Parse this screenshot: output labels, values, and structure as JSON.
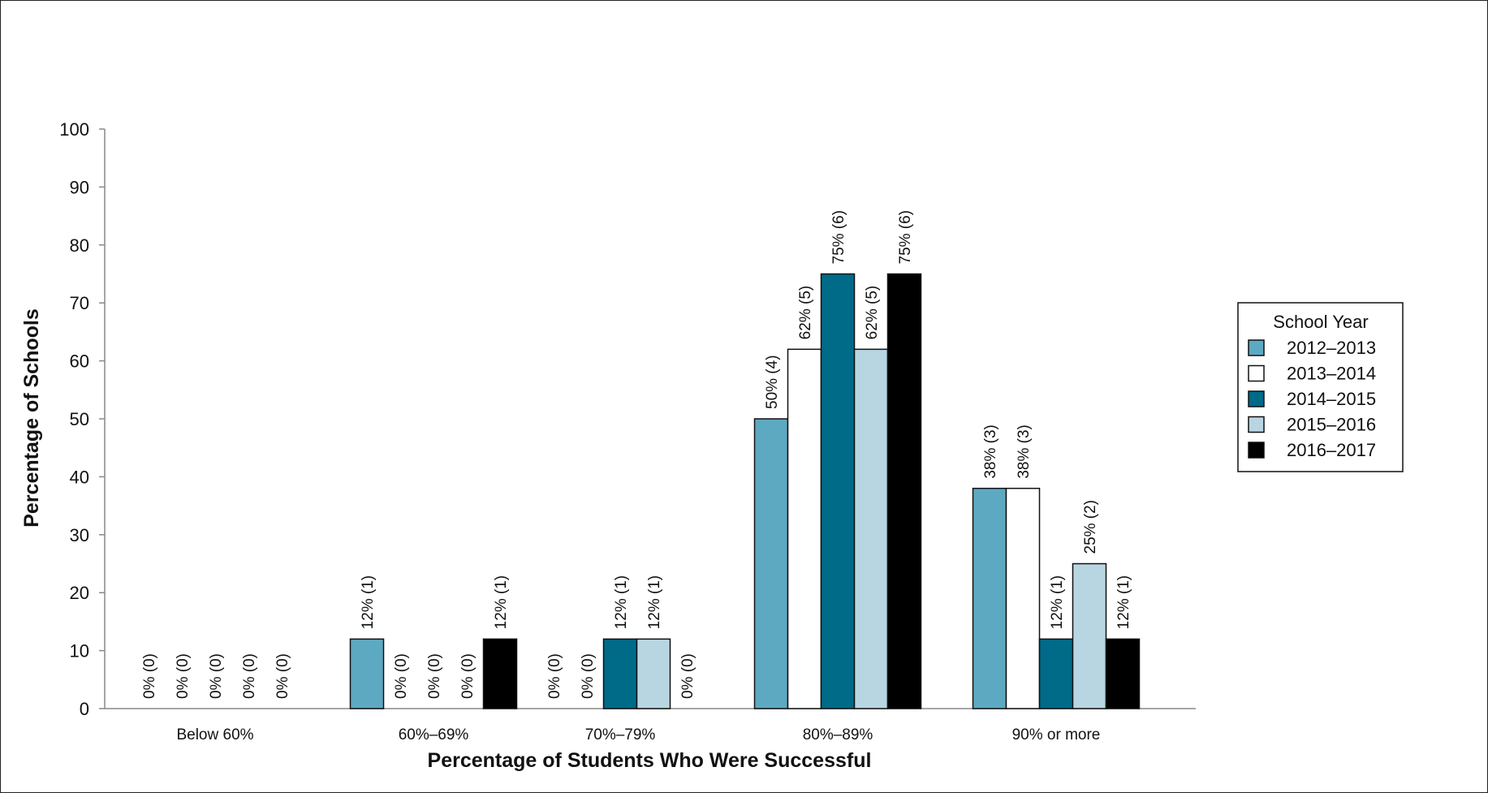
{
  "chart_data": {
    "type": "bar",
    "xlabel": "Percentage of Students Who Were Successful",
    "ylabel": "Percentage of Schools",
    "ylim": [
      0,
      100
    ],
    "yticks": [
      0,
      10,
      20,
      30,
      40,
      50,
      60,
      70,
      80,
      90,
      100
    ],
    "grid": false,
    "legend_title": "School Year",
    "legend_position": "right",
    "categories": [
      "Below 60%",
      "60%–69%",
      "70%–79%",
      "80%–89%",
      "90% or more"
    ],
    "series": [
      {
        "name": "2012–2013",
        "color": "#5ea9c2",
        "values": [
          0,
          12,
          0,
          50,
          38
        ],
        "labels": [
          "0% (0)",
          "12% (1)",
          "0% (0)",
          "50% (4)",
          "38% (3)"
        ]
      },
      {
        "name": "2013–2014",
        "color": "#ffffff",
        "values": [
          0,
          0,
          0,
          62,
          38
        ],
        "labels": [
          "0% (0)",
          "0% (0)",
          "0% (0)",
          "62% (5)",
          "38% (3)"
        ]
      },
      {
        "name": "2014–2015",
        "color": "#006a89",
        "values": [
          0,
          0,
          12,
          75,
          12
        ],
        "labels": [
          "0% (0)",
          "0% (0)",
          "12% (1)",
          "75% (6)",
          "12% (1)"
        ]
      },
      {
        "name": "2015–2016",
        "color": "#b8d6e2",
        "values": [
          0,
          0,
          12,
          62,
          25
        ],
        "labels": [
          "0% (0)",
          "0% (0)",
          "12% (1)",
          "62% (5)",
          "25% (2)"
        ]
      },
      {
        "name": "2016–2017",
        "color": "#000000",
        "values": [
          0,
          12,
          0,
          75,
          12
        ],
        "labels": [
          "0% (0)",
          "12% (1)",
          "0% (0)",
          "75% (6)",
          "12% (1)"
        ]
      }
    ]
  }
}
